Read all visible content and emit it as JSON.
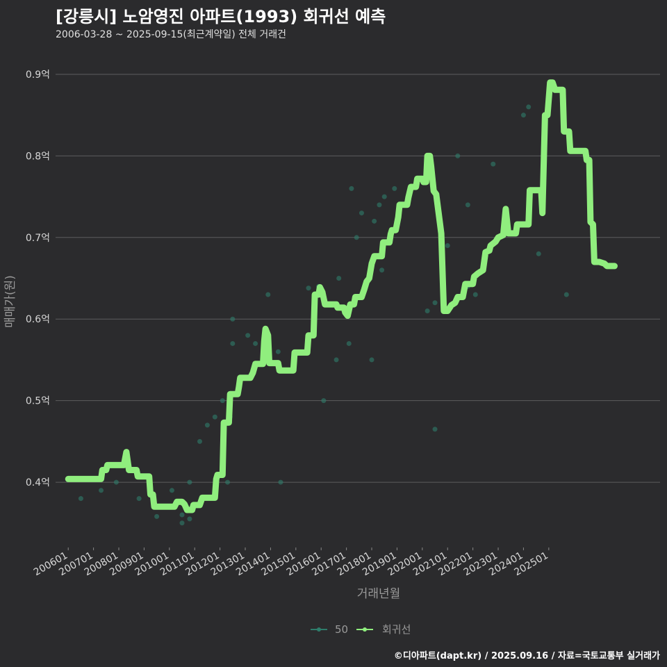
{
  "title": "[강릉시] 노암영진 아파트(1993) 회귀선 예측",
  "subtitle": "2006-03-28 ~ 2025-09-15(최근계약일) 전체 거래건",
  "footer": "©디아파트(dapt.kr) / 2025.09.16 / 자료=국토교통부 실거래가",
  "colors": {
    "background": "#2b2b2d",
    "grid": "#5c5c5e",
    "scatter": "#2e7d6b",
    "line": "#90ee7e"
  },
  "chart_data": {
    "type": "line",
    "xlabel": "거래년월",
    "ylabel": "매매가(원)",
    "x_tick_labels": [
      "200601",
      "200701",
      "200801",
      "200901",
      "201001",
      "201101",
      "201201",
      "201301",
      "201401",
      "201501",
      "201601",
      "201701",
      "201801",
      "201901",
      "202001",
      "202101",
      "202201",
      "202301",
      "202401",
      "202501"
    ],
    "y_ticks": [
      0.4,
      0.5,
      0.6,
      0.7,
      0.8,
      0.9
    ],
    "y_tick_labels": [
      "0.4억",
      "0.5억",
      "0.6억",
      "0.7억",
      "0.8억",
      "0.9억"
    ],
    "ylim": [
      0.32,
      0.94
    ],
    "grid": true,
    "legend_position": "bottom",
    "legend": [
      "50",
      "회귀선"
    ],
    "series": [
      {
        "name": "50",
        "type": "scatter",
        "points": [
          [
            2006.5,
            0.38
          ],
          [
            2007.3,
            0.39
          ],
          [
            2007.9,
            0.4
          ],
          [
            2008.8,
            0.38
          ],
          [
            2009.5,
            0.358
          ],
          [
            2010.1,
            0.39
          ],
          [
            2010.5,
            0.35
          ],
          [
            2010.5,
            0.36
          ],
          [
            2010.8,
            0.355
          ],
          [
            2010.8,
            0.4
          ],
          [
            2011.2,
            0.45
          ],
          [
            2011.5,
            0.47
          ],
          [
            2011.8,
            0.48
          ],
          [
            2012.1,
            0.5
          ],
          [
            2012.3,
            0.4
          ],
          [
            2012.4,
            0.48
          ],
          [
            2012.5,
            0.57
          ],
          [
            2012.5,
            0.6
          ],
          [
            2013.1,
            0.58
          ],
          [
            2013.4,
            0.57
          ],
          [
            2013.9,
            0.63
          ],
          [
            2014.3,
            0.56
          ],
          [
            2014.4,
            0.4
          ],
          [
            2015.5,
            0.638
          ],
          [
            2015.9,
            0.64
          ],
          [
            2016.1,
            0.5
          ],
          [
            2016.6,
            0.55
          ],
          [
            2016.7,
            0.65
          ],
          [
            2017.1,
            0.57
          ],
          [
            2017.2,
            0.76
          ],
          [
            2017.4,
            0.7
          ],
          [
            2017.6,
            0.73
          ],
          [
            2018.0,
            0.55
          ],
          [
            2018.1,
            0.72
          ],
          [
            2018.3,
            0.74
          ],
          [
            2018.4,
            0.66
          ],
          [
            2018.5,
            0.75
          ],
          [
            2018.9,
            0.76
          ],
          [
            2019.2,
            0.74
          ],
          [
            2020.2,
            0.61
          ],
          [
            2020.5,
            0.62
          ],
          [
            2020.5,
            0.465
          ],
          [
            2021.0,
            0.69
          ],
          [
            2021.3,
            0.62
          ],
          [
            2021.4,
            0.8
          ],
          [
            2021.8,
            0.74
          ],
          [
            2021.8,
            0.64
          ],
          [
            2022.1,
            0.63
          ],
          [
            2022.8,
            0.79
          ],
          [
            2024.0,
            0.85
          ],
          [
            2024.2,
            0.86
          ],
          [
            2024.6,
            0.68
          ],
          [
            2025.7,
            0.63
          ]
        ]
      },
      {
        "name": "회귀선",
        "type": "line",
        "points": [
          [
            2006.0,
            0.404
          ],
          [
            2006.5,
            0.404
          ],
          [
            2007.0,
            0.404
          ],
          [
            2007.3,
            0.404
          ],
          [
            2007.35,
            0.415
          ],
          [
            2007.5,
            0.415
          ],
          [
            2007.55,
            0.421
          ],
          [
            2007.8,
            0.421
          ],
          [
            2008.0,
            0.421
          ],
          [
            2008.2,
            0.421
          ],
          [
            2008.3,
            0.437
          ],
          [
            2008.4,
            0.415
          ],
          [
            2008.7,
            0.415
          ],
          [
            2008.75,
            0.407
          ],
          [
            2009.2,
            0.407
          ],
          [
            2009.25,
            0.385
          ],
          [
            2009.35,
            0.385
          ],
          [
            2009.4,
            0.37
          ],
          [
            2010.2,
            0.37
          ],
          [
            2010.3,
            0.376
          ],
          [
            2010.5,
            0.376
          ],
          [
            2010.6,
            0.373
          ],
          [
            2010.7,
            0.366
          ],
          [
            2010.9,
            0.366
          ],
          [
            2010.95,
            0.372
          ],
          [
            2011.2,
            0.372
          ],
          [
            2011.3,
            0.381
          ],
          [
            2011.8,
            0.381
          ],
          [
            2011.85,
            0.404
          ],
          [
            2011.9,
            0.409
          ],
          [
            2012.1,
            0.409
          ],
          [
            2012.15,
            0.473
          ],
          [
            2012.35,
            0.473
          ],
          [
            2012.4,
            0.508
          ],
          [
            2012.7,
            0.508
          ],
          [
            2012.75,
            0.517
          ],
          [
            2012.8,
            0.528
          ],
          [
            2013.2,
            0.528
          ],
          [
            2013.3,
            0.534
          ],
          [
            2013.4,
            0.545
          ],
          [
            2013.7,
            0.545
          ],
          [
            2013.75,
            0.573
          ],
          [
            2013.8,
            0.588
          ],
          [
            2013.9,
            0.58
          ],
          [
            2013.95,
            0.546
          ],
          [
            2014.3,
            0.546
          ],
          [
            2014.35,
            0.537
          ],
          [
            2014.9,
            0.537
          ],
          [
            2014.95,
            0.559
          ],
          [
            2015.45,
            0.559
          ],
          [
            2015.5,
            0.58
          ],
          [
            2015.7,
            0.58
          ],
          [
            2015.75,
            0.63
          ],
          [
            2015.9,
            0.63
          ],
          [
            2015.95,
            0.639
          ],
          [
            2016.05,
            0.633
          ],
          [
            2016.15,
            0.618
          ],
          [
            2016.6,
            0.618
          ],
          [
            2016.65,
            0.614
          ],
          [
            2016.9,
            0.614
          ],
          [
            2016.95,
            0.608
          ],
          [
            2017.05,
            0.604
          ],
          [
            2017.15,
            0.618
          ],
          [
            2017.3,
            0.618
          ],
          [
            2017.35,
            0.627
          ],
          [
            2017.6,
            0.627
          ],
          [
            2017.7,
            0.636
          ],
          [
            2017.8,
            0.646
          ],
          [
            2017.9,
            0.65
          ],
          [
            2018.0,
            0.668
          ],
          [
            2018.1,
            0.677
          ],
          [
            2018.4,
            0.677
          ],
          [
            2018.45,
            0.694
          ],
          [
            2018.7,
            0.694
          ],
          [
            2018.75,
            0.704
          ],
          [
            2018.8,
            0.709
          ],
          [
            2018.95,
            0.709
          ],
          [
            2019.05,
            0.725
          ],
          [
            2019.1,
            0.74
          ],
          [
            2019.4,
            0.74
          ],
          [
            2019.45,
            0.749
          ],
          [
            2019.55,
            0.762
          ],
          [
            2019.75,
            0.762
          ],
          [
            2019.8,
            0.772
          ],
          [
            2020.0,
            0.772
          ],
          [
            2020.05,
            0.768
          ],
          [
            2020.15,
            0.768
          ],
          [
            2020.2,
            0.8
          ],
          [
            2020.3,
            0.8
          ],
          [
            2020.35,
            0.787
          ],
          [
            2020.45,
            0.757
          ],
          [
            2020.55,
            0.753
          ],
          [
            2020.75,
            0.705
          ],
          [
            2020.85,
            0.61
          ],
          [
            2021.0,
            0.61
          ],
          [
            2021.15,
            0.617
          ],
          [
            2021.3,
            0.62
          ],
          [
            2021.4,
            0.627
          ],
          [
            2021.6,
            0.627
          ],
          [
            2021.7,
            0.643
          ],
          [
            2022.0,
            0.643
          ],
          [
            2022.05,
            0.652
          ],
          [
            2022.2,
            0.656
          ],
          [
            2022.4,
            0.66
          ],
          [
            2022.5,
            0.682
          ],
          [
            2022.65,
            0.684
          ],
          [
            2022.7,
            0.69
          ],
          [
            2022.9,
            0.695
          ],
          [
            2023.0,
            0.7
          ],
          [
            2023.2,
            0.703
          ],
          [
            2023.3,
            0.735
          ],
          [
            2023.4,
            0.705
          ],
          [
            2023.7,
            0.705
          ],
          [
            2023.75,
            0.716
          ],
          [
            2024.2,
            0.716
          ],
          [
            2024.25,
            0.758
          ],
          [
            2024.7,
            0.758
          ],
          [
            2024.75,
            0.73
          ],
          [
            2024.85,
            0.85
          ],
          [
            2024.95,
            0.85
          ],
          [
            2025.05,
            0.89
          ],
          [
            2025.15,
            0.89
          ],
          [
            2025.25,
            0.881
          ],
          [
            2025.55,
            0.881
          ],
          [
            2025.6,
            0.83
          ],
          [
            2025.8,
            0.83
          ],
          [
            2025.85,
            0.806
          ],
          [
            2026.45,
            0.806
          ],
          [
            2026.5,
            0.795
          ],
          [
            2026.6,
            0.795
          ],
          [
            2026.65,
            0.719
          ],
          [
            2026.75,
            0.716
          ],
          [
            2026.8,
            0.67
          ],
          [
            2027.0,
            0.67
          ],
          [
            2027.2,
            0.668
          ],
          [
            2027.3,
            0.665
          ],
          [
            2027.6,
            0.665
          ]
        ]
      }
    ]
  }
}
